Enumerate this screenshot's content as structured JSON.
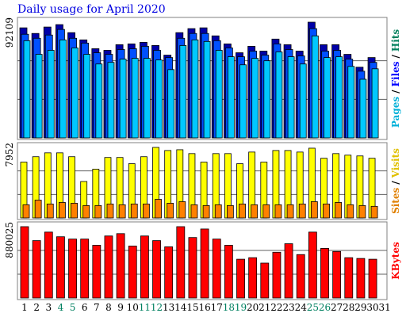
{
  "title": "Daily usage for April 2020",
  "legend_separator": "/",
  "chart_data": [
    {
      "type": "bar",
      "ylim": [
        0,
        92109
      ],
      "yticks": [
        92109
      ],
      "series": [
        {
          "name": "Hits",
          "color": "#0000a8",
          "label_color": "#00805c",
          "values": [
            87627,
            83150,
            88265,
            90184,
            83788,
            78031,
            70996,
            69717,
            74194,
            74833,
            76112,
            73554,
            65879,
            83788,
            86986,
            87627,
            81229,
            74833,
            67798,
            72914,
            69077,
            78671,
            74194,
            69077,
            92109,
            74194,
            74194,
            66518,
            56285,
            63960,
            null
          ]
        },
        {
          "name": "Files",
          "color": "#0050ff",
          "label_color": "#0000ff",
          "values": [
            82508,
            79310,
            81869,
            86346,
            79310,
            75473,
            67798,
            66518,
            70356,
            70996,
            72914,
            69717,
            63960,
            79310,
            83150,
            83150,
            77392,
            71635,
            64600,
            69077,
            65879,
            74833,
            70356,
            65239,
            86986,
            69077,
            69717,
            62681,
            53087,
            60122,
            null
          ]
        },
        {
          "name": "Pages",
          "color": "#00c8ff",
          "label_color": "#00b0d8",
          "values": [
            77392,
            66518,
            69717,
            78031,
            71635,
            66518,
            58843,
            60122,
            62681,
            63320,
            63320,
            62041,
            54366,
            73554,
            78031,
            76752,
            69717,
            64600,
            58204,
            63320,
            61402,
            68437,
            64600,
            58843,
            81229,
            63960,
            64600,
            56924,
            46691,
            55006,
            null
          ]
        }
      ]
    },
    {
      "type": "bar",
      "ylim": [
        0,
        7952
      ],
      "yticks": [
        7952
      ],
      "series": [
        {
          "name": "Visits",
          "color": "#ffff00",
          "label_color": "#e0c000",
          "values": [
            6292,
            6904,
            7341,
            7341,
            6904,
            4107,
            5505,
            6816,
            6816,
            6117,
            6904,
            7952,
            7603,
            7690,
            7253,
            6292,
            7253,
            7253,
            6117,
            7428,
            6292,
            7603,
            7603,
            7428,
            7865,
            6729,
            7253,
            7078,
            6991,
            6729,
            null
          ]
        },
        {
          "name": "Sites",
          "color": "#ff8000",
          "label_color": "#e08000",
          "values": [
            1486,
            2010,
            1573,
            1748,
            1661,
            1398,
            1398,
            1573,
            1486,
            1573,
            1573,
            2098,
            1661,
            1835,
            1486,
            1398,
            1486,
            1398,
            1573,
            1486,
            1486,
            1486,
            1486,
            1573,
            1835,
            1573,
            1748,
            1486,
            1398,
            1311,
            null
          ]
        }
      ]
    },
    {
      "type": "bar",
      "ylim": [
        0,
        880025
      ],
      "yticks": [
        880025
      ],
      "categories": [
        1,
        2,
        3,
        4,
        5,
        6,
        7,
        8,
        9,
        10,
        11,
        12,
        13,
        14,
        15,
        16,
        17,
        18,
        19,
        20,
        21,
        22,
        23,
        24,
        25,
        26,
        27,
        28,
        29,
        30,
        31
      ],
      "category_colors": [
        "#000",
        "#000",
        "#000",
        "#008060",
        "#008060",
        "#000",
        "#000",
        "#000",
        "#000",
        "#000",
        "#008060",
        "#008060",
        "#000",
        "#000",
        "#000",
        "#000",
        "#000",
        "#008060",
        "#008060",
        "#000",
        "#000",
        "#000",
        "#000",
        "#000",
        "#008060",
        "#008060",
        "#000",
        "#000",
        "#000",
        "#000",
        "#000"
      ],
      "series": [
        {
          "name": "KBytes",
          "color": "#ff0000",
          "label_color": "#ff0000",
          "values": [
            880025,
            707810,
            813025,
            755635,
            726940,
            726940,
            650420,
            765200,
            793895,
            640855,
            765200,
            707810,
            631290,
            880025,
            746070,
            851285,
            726940,
            650420,
            478250,
            497380,
            430425,
            564335,
            669550,
            535640,
            813025,
            612160,
            573900,
            497380,
            487815,
            478250,
            null
          ]
        }
      ]
    }
  ]
}
